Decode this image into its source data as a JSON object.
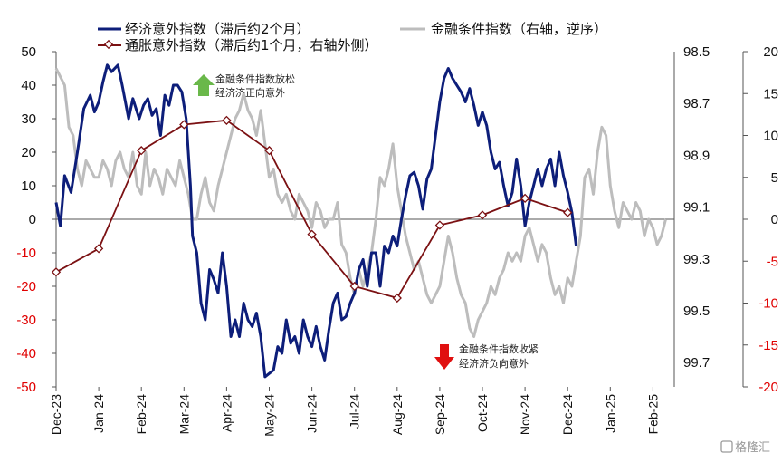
{
  "chart_data": {
    "type": "line",
    "x_labels": [
      "Dec-23",
      "Jan-24",
      "Feb-24",
      "Mar-24",
      "Apr-24",
      "May-24",
      "Jun-24",
      "Jul-24",
      "Aug-24",
      "Sep-24",
      "Oct-24",
      "Nov-24",
      "Dec-24",
      "Jan-25",
      "Feb-25"
    ],
    "axes": {
      "left": {
        "min": -50,
        "max": 50,
        "ticks": [
          50,
          40,
          30,
          20,
          10,
          0,
          -10,
          -20,
          -30,
          -40,
          -50
        ]
      },
      "right": {
        "min": -20,
        "max": 20,
        "ticks": [
          20,
          15,
          10,
          5,
          0,
          -5,
          -10,
          -15,
          -20
        ]
      },
      "inverse": {
        "ticks": [
          "98.5",
          "98.7",
          "98.9",
          "99.1",
          "99.3",
          "99.5",
          "99.7"
        ]
      }
    },
    "grid": false,
    "legend_position": "top",
    "series": [
      {
        "name": "经济意外指数（滞后约2个月）",
        "axis": "left",
        "color": "#0d1e7a",
        "points": [
          [
            0.0,
            5
          ],
          [
            0.1,
            -2
          ],
          [
            0.2,
            13
          ],
          [
            0.35,
            8
          ],
          [
            0.5,
            20
          ],
          [
            0.65,
            33
          ],
          [
            0.8,
            37
          ],
          [
            0.9,
            32
          ],
          [
            1.0,
            35
          ],
          [
            1.1,
            41
          ],
          [
            1.2,
            46
          ],
          [
            1.3,
            44
          ],
          [
            1.45,
            46
          ],
          [
            1.55,
            40
          ],
          [
            1.7,
            30
          ],
          [
            1.8,
            36
          ],
          [
            1.95,
            30
          ],
          [
            2.05,
            34
          ],
          [
            2.15,
            36
          ],
          [
            2.25,
            31
          ],
          [
            2.35,
            33
          ],
          [
            2.45,
            25
          ],
          [
            2.55,
            37
          ],
          [
            2.65,
            34
          ],
          [
            2.75,
            40
          ],
          [
            2.85,
            40
          ],
          [
            2.95,
            38
          ],
          [
            3.05,
            30
          ],
          [
            3.15,
            10
          ],
          [
            3.2,
            -5
          ],
          [
            3.3,
            -10
          ],
          [
            3.4,
            -25
          ],
          [
            3.5,
            -30
          ],
          [
            3.6,
            -15
          ],
          [
            3.7,
            -18
          ],
          [
            3.8,
            -22
          ],
          [
            3.9,
            -10
          ],
          [
            4.0,
            -20
          ],
          [
            4.1,
            -35
          ],
          [
            4.2,
            -30
          ],
          [
            4.3,
            -35
          ],
          [
            4.4,
            -25
          ],
          [
            4.5,
            -30
          ],
          [
            4.6,
            -32
          ],
          [
            4.7,
            -28
          ],
          [
            4.8,
            -35
          ],
          [
            4.9,
            -47
          ],
          [
            5.0,
            -46
          ],
          [
            5.1,
            -45
          ],
          [
            5.2,
            -38
          ],
          [
            5.3,
            -40
          ],
          [
            5.4,
            -30
          ],
          [
            5.5,
            -37
          ],
          [
            5.6,
            -35
          ],
          [
            5.7,
            -40
          ],
          [
            5.8,
            -30
          ],
          [
            5.9,
            -35
          ],
          [
            6.0,
            -38
          ],
          [
            6.1,
            -32
          ],
          [
            6.2,
            -38
          ],
          [
            6.3,
            -42
          ],
          [
            6.4,
            -33
          ],
          [
            6.5,
            -25
          ],
          [
            6.6,
            -22
          ],
          [
            6.7,
            -30
          ],
          [
            6.8,
            -29
          ],
          [
            6.9,
            -25
          ],
          [
            7.0,
            -22
          ],
          [
            7.1,
            -15
          ],
          [
            7.2,
            -12
          ],
          [
            7.3,
            -20
          ],
          [
            7.4,
            -10
          ],
          [
            7.5,
            -10
          ],
          [
            7.6,
            -20
          ],
          [
            7.7,
            -8
          ],
          [
            7.8,
            -10
          ],
          [
            7.9,
            -5
          ],
          [
            8.0,
            -8
          ],
          [
            8.1,
            0
          ],
          [
            8.2,
            7
          ],
          [
            8.3,
            13
          ],
          [
            8.4,
            14
          ],
          [
            8.5,
            10
          ],
          [
            8.6,
            3
          ],
          [
            8.7,
            12
          ],
          [
            8.8,
            15
          ],
          [
            8.9,
            25
          ],
          [
            9.0,
            35
          ],
          [
            9.1,
            42
          ],
          [
            9.2,
            45
          ],
          [
            9.3,
            42
          ],
          [
            9.4,
            40
          ],
          [
            9.5,
            38
          ],
          [
            9.6,
            35
          ],
          [
            9.7,
            39
          ],
          [
            9.8,
            34
          ],
          [
            9.9,
            28
          ],
          [
            10.0,
            32
          ],
          [
            10.1,
            28
          ],
          [
            10.2,
            20
          ],
          [
            10.3,
            15
          ],
          [
            10.4,
            17
          ],
          [
            10.5,
            10
          ],
          [
            10.6,
            4
          ],
          [
            10.7,
            8
          ],
          [
            10.8,
            18
          ],
          [
            10.9,
            10
          ],
          [
            11.0,
            -2
          ],
          [
            11.1,
            5
          ],
          [
            11.2,
            10
          ],
          [
            11.3,
            15
          ],
          [
            11.4,
            10
          ],
          [
            11.5,
            15
          ],
          [
            11.6,
            18
          ],
          [
            11.7,
            10
          ],
          [
            11.8,
            20
          ],
          [
            11.9,
            13
          ],
          [
            12.0,
            8
          ],
          [
            12.1,
            2
          ],
          [
            12.2,
            -8
          ]
        ]
      },
      {
        "name": "金融条件指数（右轴，逆序）",
        "axis": "inverse",
        "color": "#bdbdbd",
        "points": [
          [
            0.0,
            -18
          ],
          [
            0.1,
            -17
          ],
          [
            0.2,
            -16
          ],
          [
            0.3,
            -11
          ],
          [
            0.4,
            -10
          ],
          [
            0.5,
            -6
          ],
          [
            0.6,
            -4
          ],
          [
            0.7,
            -7
          ],
          [
            0.8,
            -6
          ],
          [
            0.9,
            -5
          ],
          [
            1.0,
            -5
          ],
          [
            1.1,
            -7
          ],
          [
            1.2,
            -6
          ],
          [
            1.3,
            -4
          ],
          [
            1.4,
            -7
          ],
          [
            1.5,
            -8
          ],
          [
            1.6,
            -6
          ],
          [
            1.7,
            -5
          ],
          [
            1.8,
            -8
          ],
          [
            1.9,
            -4
          ],
          [
            2.0,
            -3
          ],
          [
            2.1,
            -8
          ],
          [
            2.2,
            -4
          ],
          [
            2.3,
            -6
          ],
          [
            2.4,
            -5
          ],
          [
            2.5,
            -3
          ],
          [
            2.6,
            -6
          ],
          [
            2.7,
            -5
          ],
          [
            2.8,
            -4
          ],
          [
            2.9,
            -7
          ],
          [
            3.0,
            -5
          ],
          [
            3.1,
            -3
          ],
          [
            3.2,
            0
          ],
          [
            3.3,
            0
          ],
          [
            3.4,
            -3
          ],
          [
            3.5,
            -5
          ],
          [
            3.6,
            -2
          ],
          [
            3.7,
            -1
          ],
          [
            3.8,
            -4
          ],
          [
            3.9,
            -6
          ],
          [
            4.0,
            -8
          ],
          [
            4.1,
            -10
          ],
          [
            4.2,
            -12
          ],
          [
            4.3,
            -13
          ],
          [
            4.4,
            -15
          ],
          [
            4.5,
            -13
          ],
          [
            4.6,
            -12
          ],
          [
            4.7,
            -10
          ],
          [
            4.8,
            -13
          ],
          [
            4.9,
            -9
          ],
          [
            5.0,
            -5
          ],
          [
            5.1,
            -6
          ],
          [
            5.2,
            -3
          ],
          [
            5.3,
            -2
          ],
          [
            5.4,
            -3
          ],
          [
            5.5,
            -1
          ],
          [
            5.6,
            0
          ],
          [
            5.7,
            -3
          ],
          [
            5.8,
            -2
          ],
          [
            5.9,
            -1
          ],
          [
            6.0,
            1
          ],
          [
            6.1,
            -2
          ],
          [
            6.2,
            -1
          ],
          [
            6.3,
            1
          ],
          [
            6.4,
            0
          ],
          [
            6.5,
            0
          ],
          [
            6.6,
            -2
          ],
          [
            6.7,
            3
          ],
          [
            6.8,
            4
          ],
          [
            6.9,
            7
          ],
          [
            7.0,
            9
          ],
          [
            7.1,
            6
          ],
          [
            7.2,
            8
          ],
          [
            7.3,
            6
          ],
          [
            7.4,
            4
          ],
          [
            7.5,
            0
          ],
          [
            7.6,
            -5
          ],
          [
            7.7,
            -4
          ],
          [
            7.8,
            -6
          ],
          [
            7.9,
            -9
          ],
          [
            8.0,
            -4
          ],
          [
            8.1,
            -1
          ],
          [
            8.2,
            2
          ],
          [
            8.3,
            4
          ],
          [
            8.4,
            6
          ],
          [
            8.5,
            5
          ],
          [
            8.6,
            7
          ],
          [
            8.7,
            9
          ],
          [
            8.8,
            10
          ],
          [
            8.9,
            9
          ],
          [
            9.0,
            8
          ],
          [
            9.1,
            5
          ],
          [
            9.2,
            2
          ],
          [
            9.3,
            4
          ],
          [
            9.4,
            7
          ],
          [
            9.5,
            9
          ],
          [
            9.6,
            10
          ],
          [
            9.7,
            13
          ],
          [
            9.8,
            14
          ],
          [
            9.9,
            12
          ],
          [
            10.0,
            11
          ],
          [
            10.1,
            10
          ],
          [
            10.2,
            8
          ],
          [
            10.3,
            9
          ],
          [
            10.4,
            7
          ],
          [
            10.5,
            6
          ],
          [
            10.6,
            4
          ],
          [
            10.7,
            5
          ],
          [
            10.8,
            4
          ],
          [
            10.9,
            5
          ],
          [
            11.0,
            2
          ],
          [
            11.1,
            1
          ],
          [
            11.2,
            3
          ],
          [
            11.3,
            5
          ],
          [
            11.4,
            3
          ],
          [
            11.5,
            4
          ],
          [
            11.6,
            7
          ],
          [
            11.7,
            9
          ],
          [
            11.8,
            8
          ],
          [
            11.9,
            10
          ],
          [
            12.0,
            7
          ],
          [
            12.1,
            8
          ],
          [
            12.2,
            5
          ],
          [
            12.3,
            2
          ],
          [
            12.4,
            -5
          ],
          [
            12.5,
            -6
          ],
          [
            12.6,
            -3
          ],
          [
            12.7,
            -8
          ],
          [
            12.8,
            -11
          ],
          [
            12.9,
            -10
          ],
          [
            13.0,
            -4
          ],
          [
            13.1,
            -1
          ],
          [
            13.2,
            1
          ],
          [
            13.3,
            -2
          ],
          [
            13.4,
            -1
          ],
          [
            13.5,
            0
          ],
          [
            13.6,
            -2
          ],
          [
            13.7,
            -1
          ],
          [
            13.8,
            2
          ],
          [
            13.9,
            0
          ],
          [
            14.0,
            1
          ],
          [
            14.1,
            3
          ],
          [
            14.2,
            2
          ],
          [
            14.3,
            0
          ]
        ]
      },
      {
        "name": "通胀意外指数（滞后约1个月，右轴外侧）",
        "axis": "right",
        "color": "#7b1113",
        "marker": "diamond",
        "points": [
          [
            0.0,
            -6.3
          ],
          [
            1.0,
            -3.5
          ],
          [
            2.0,
            8.2
          ],
          [
            3.0,
            11.3
          ],
          [
            4.0,
            11.8
          ],
          [
            5.0,
            8.2
          ],
          [
            6.0,
            -1.8
          ],
          [
            7.0,
            -8
          ],
          [
            8.0,
            -9.4
          ],
          [
            9.0,
            -0.7
          ],
          [
            10.0,
            0.5
          ],
          [
            11.0,
            2.5
          ],
          [
            12.0,
            0.8
          ]
        ]
      }
    ],
    "legend": [
      "经济意外指数（滞后约2个月）",
      "金融条件指数（右轴，逆序）",
      "通胀意外指数（滞后约1个月，右轴外侧）"
    ],
    "annotations": [
      {
        "lines": [
          "金融条件指数放松",
          "经济济正向意外"
        ],
        "arrow": "up",
        "color": "#6ab84a"
      },
      {
        "lines": [
          "金融条件指数收紧",
          "经济济负向意外"
        ],
        "arrow": "down",
        "color": "#e01010"
      }
    ]
  },
  "watermark": "格隆汇"
}
